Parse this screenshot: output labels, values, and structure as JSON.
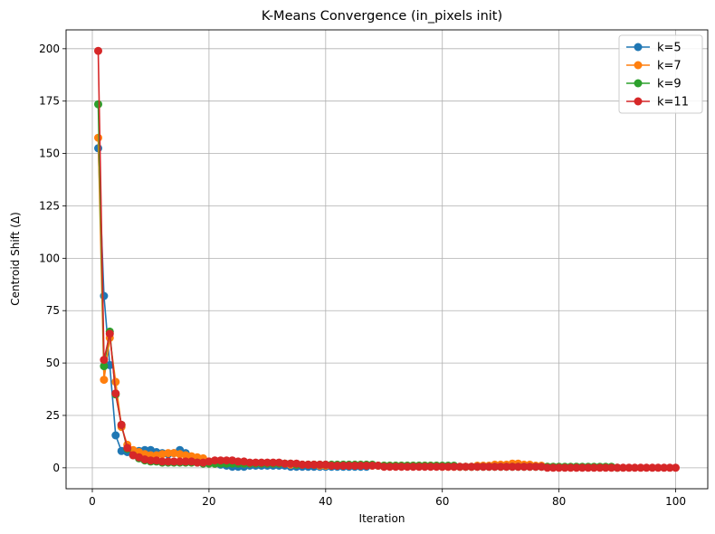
{
  "chart_data": {
    "type": "line",
    "title": "K-Means Convergence (in_pixels init)",
    "xlabel": "Iteration",
    "ylabel": "Centroid Shift (Δ)",
    "xlim": [
      -4.5,
      105.5
    ],
    "ylim": [
      -10,
      209
    ],
    "xticks": [
      0,
      20,
      40,
      60,
      80,
      100
    ],
    "yticks": [
      0,
      25,
      50,
      75,
      100,
      125,
      150,
      175,
      200
    ],
    "grid": true,
    "legend_position": "top-right",
    "series": [
      {
        "name": "k=5",
        "color": "#1f77b4",
        "x": [
          1,
          2,
          3,
          4,
          5,
          6,
          7,
          8,
          9,
          10,
          11,
          12,
          13,
          14,
          15,
          16,
          17,
          18,
          19,
          20,
          21,
          22,
          23,
          24,
          25,
          26,
          27,
          28,
          29,
          30,
          31,
          32,
          33,
          34,
          35,
          36,
          37,
          38,
          39,
          40,
          41,
          42,
          43,
          44,
          45,
          46,
          47
        ],
        "y": [
          152.5,
          82,
          49,
          15.5,
          8,
          7.5,
          7,
          8,
          8.5,
          8.5,
          7.5,
          7,
          6.5,
          7,
          8.5,
          7,
          5,
          4,
          3,
          2.5,
          2,
          1.5,
          1,
          0.5,
          0.5,
          0.5,
          1,
          1,
          1,
          1,
          1,
          1,
          1,
          0.5,
          0.5,
          0.5,
          0.5,
          0.5,
          0.5,
          0.5,
          0.5,
          0.5,
          0.5,
          0.5,
          0.5,
          0.5,
          0.5
        ]
      },
      {
        "name": "k=7",
        "color": "#ff7f0e",
        "x": [
          1,
          2,
          3,
          4,
          5,
          6,
          7,
          8,
          9,
          10,
          11,
          12,
          13,
          14,
          15,
          16,
          17,
          18,
          19,
          20,
          21,
          22,
          23,
          24,
          25,
          26,
          27,
          28,
          29,
          30,
          31,
          32,
          33,
          34,
          35,
          36,
          37,
          38,
          39,
          40,
          41,
          42,
          43,
          44,
          45,
          46,
          47,
          48,
          49,
          50,
          51,
          52,
          53,
          54,
          55,
          56,
          57,
          58,
          59,
          60,
          61,
          62,
          63,
          64,
          65,
          66,
          67,
          68,
          69,
          70,
          71,
          72,
          73,
          74,
          75,
          76,
          77,
          78,
          79,
          80
        ],
        "y": [
          157.5,
          42,
          62,
          41,
          19.5,
          11,
          8.5,
          7.5,
          6.5,
          6,
          6,
          6.5,
          7,
          7,
          6.5,
          6,
          5.5,
          5,
          4.5,
          3,
          2,
          2.5,
          2.5,
          2.5,
          2.5,
          2,
          2,
          2,
          2,
          2,
          2,
          2,
          2,
          1.5,
          1.5,
          1.5,
          1.5,
          1.5,
          1,
          1,
          1,
          1,
          1,
          1,
          1,
          1,
          1,
          1,
          1,
          1,
          1,
          1,
          1,
          1,
          1,
          1,
          1,
          1,
          1,
          0.5,
          0.5,
          0.5,
          0.5,
          0.5,
          0.5,
          1,
          1,
          1,
          1.5,
          1.5,
          1.5,
          2,
          2,
          1.5,
          1.5,
          1,
          1,
          0.5,
          0.5,
          0.5
        ]
      },
      {
        "name": "k=9",
        "color": "#2ca02c",
        "x": [
          1,
          2,
          3,
          4,
          5,
          6,
          7,
          8,
          9,
          10,
          11,
          12,
          13,
          14,
          15,
          16,
          17,
          18,
          19,
          20,
          21,
          22,
          23,
          24,
          25,
          26,
          27,
          28,
          29,
          30,
          31,
          32,
          33,
          34,
          35,
          36,
          37,
          38,
          39,
          40,
          41,
          42,
          43,
          44,
          45,
          46,
          47,
          48,
          49,
          50,
          51,
          52,
          53,
          54,
          55,
          56,
          57,
          58,
          59,
          60,
          61,
          62,
          63,
          64,
          65,
          66,
          67,
          68,
          69,
          70,
          71,
          72,
          73,
          74,
          75,
          76,
          77,
          78,
          79,
          80,
          81,
          82,
          83,
          84,
          85,
          86,
          87,
          88,
          89,
          90
        ],
        "y": [
          173.5,
          48.5,
          65,
          35,
          20.5,
          9,
          6,
          4.5,
          3.5,
          3,
          3,
          2.5,
          2.5,
          2.5,
          2.5,
          2.5,
          2.5,
          2.5,
          2,
          2,
          2,
          2,
          2,
          2,
          2,
          2,
          2,
          2,
          2,
          2,
          2,
          2,
          2,
          2,
          1.5,
          1.5,
          1.5,
          1.5,
          1.5,
          1.5,
          1.5,
          1.5,
          1.5,
          1.5,
          1.5,
          1.5,
          1.5,
          1.5,
          1,
          1,
          1,
          1,
          1,
          1,
          1,
          1,
          1,
          1,
          1,
          1,
          1,
          1,
          0.5,
          0.5,
          0.5,
          0.5,
          0.5,
          0.5,
          0.5,
          0.5,
          0.5,
          0.5,
          0.5,
          0.5,
          0.5,
          0.5,
          0.5,
          0.5,
          0.5,
          0.5,
          0.5,
          0.5,
          0.5,
          0.5,
          0.5,
          0.5,
          0.5,
          0.5,
          0.5,
          0
        ]
      },
      {
        "name": "k=11",
        "color": "#d62728",
        "x": [
          1,
          2,
          3,
          4,
          5,
          6,
          7,
          8,
          9,
          10,
          11,
          12,
          13,
          14,
          15,
          16,
          17,
          18,
          19,
          20,
          21,
          22,
          23,
          24,
          25,
          26,
          27,
          28,
          29,
          30,
          31,
          32,
          33,
          34,
          35,
          36,
          37,
          38,
          39,
          40,
          41,
          42,
          43,
          44,
          45,
          46,
          47,
          48,
          49,
          50,
          51,
          52,
          53,
          54,
          55,
          56,
          57,
          58,
          59,
          60,
          61,
          62,
          63,
          64,
          65,
          66,
          67,
          68,
          69,
          70,
          71,
          72,
          73,
          74,
          75,
          76,
          77,
          78,
          79,
          80,
          81,
          82,
          83,
          84,
          85,
          86,
          87,
          88,
          89,
          90,
          91,
          92,
          93,
          94,
          95,
          96,
          97,
          98,
          99,
          100
        ],
        "y": [
          199,
          51.5,
          64,
          35.5,
          20.5,
          9.5,
          6,
          5,
          4,
          3.5,
          3.5,
          3,
          3,
          3,
          3,
          3,
          3,
          2.5,
          2.5,
          3,
          3.5,
          3.5,
          3.5,
          3.5,
          3,
          3,
          2.5,
          2.5,
          2.5,
          2.5,
          2.5,
          2.5,
          2,
          2,
          2,
          1.5,
          1.5,
          1.5,
          1.5,
          1.5,
          1,
          1,
          1,
          1,
          1,
          1,
          1,
          1,
          1,
          0.5,
          0.5,
          0.5,
          0.5,
          0.5,
          0.5,
          0.5,
          0.5,
          0.5,
          0.5,
          0.5,
          0.5,
          0.5,
          0.5,
          0.5,
          0.5,
          0.5,
          0.5,
          0.5,
          0.5,
          0.5,
          0.5,
          0.5,
          0.5,
          0.5,
          0.5,
          0.5,
          0.5,
          0,
          0,
          0,
          0,
          0,
          0,
          0,
          0,
          0,
          0,
          0,
          0,
          0,
          0,
          0,
          0,
          0,
          0,
          0,
          0,
          0,
          0,
          0
        ]
      }
    ]
  }
}
